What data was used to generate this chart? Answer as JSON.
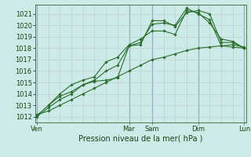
{
  "bg_color": "#cceae8",
  "grid_color_major": "#99aabb",
  "grid_color_minor": "#bbcccc",
  "line_color": "#2a6e2a",
  "marker_color": "#2a6e2a",
  "title": "Pression niveau de la mer( hPa )",
  "ylim": [
    1011.5,
    1021.8
  ],
  "yticks": [
    1012,
    1013,
    1014,
    1015,
    1016,
    1017,
    1018,
    1019,
    1020,
    1021
  ],
  "xlim": [
    -0.15,
    18.15
  ],
  "day_labels": [
    "Ven",
    "Mar",
    "Sam",
    "Dim",
    "Lun"
  ],
  "day_positions": [
    0,
    8,
    10,
    14,
    18
  ],
  "lines": [
    {
      "x": [
        0,
        1,
        2,
        3,
        4,
        5,
        6,
        7,
        8,
        9,
        10,
        11,
        12,
        13,
        14,
        15,
        16,
        17,
        18
      ],
      "y": [
        1012.0,
        1012.8,
        1013.5,
        1014.0,
        1014.8,
        1015.1,
        1015.2,
        1015.4,
        1018.2,
        1018.3,
        1020.4,
        1020.4,
        1019.9,
        1021.1,
        1021.3,
        1021.0,
        1018.5,
        1018.5,
        1018.0
      ]
    },
    {
      "x": [
        0,
        1,
        2,
        3,
        4,
        5,
        6,
        7,
        8,
        9,
        10,
        11,
        12,
        13,
        14,
        15,
        16,
        17,
        18
      ],
      "y": [
        1012.1,
        1013.0,
        1013.8,
        1014.2,
        1014.8,
        1015.2,
        1016.0,
        1016.5,
        1018.2,
        1018.5,
        1020.1,
        1020.2,
        1020.0,
        1021.5,
        1021.0,
        1020.5,
        1018.2,
        1018.3,
        1018.1
      ]
    },
    {
      "x": [
        1,
        2,
        3,
        4,
        5,
        6,
        7,
        8,
        9,
        10,
        11,
        12,
        13,
        14,
        15,
        16,
        17,
        18
      ],
      "y": [
        1013.0,
        1014.0,
        1014.8,
        1015.2,
        1015.5,
        1016.8,
        1017.2,
        1018.3,
        1018.8,
        1019.5,
        1019.5,
        1019.2,
        1021.3,
        1021.1,
        1020.2,
        1018.8,
        1018.6,
        1018.0
      ]
    },
    {
      "x": [
        0,
        1,
        2,
        3,
        4,
        5,
        6,
        7,
        8,
        9,
        10,
        11,
        12,
        13,
        14,
        15,
        16,
        17,
        18
      ],
      "y": [
        1012.2,
        1012.5,
        1013.0,
        1013.5,
        1014.0,
        1014.5,
        1015.0,
        1015.5,
        1016.0,
        1016.5,
        1017.0,
        1017.2,
        1017.5,
        1017.8,
        1018.0,
        1018.1,
        1018.2,
        1018.1,
        1018.0
      ]
    }
  ]
}
